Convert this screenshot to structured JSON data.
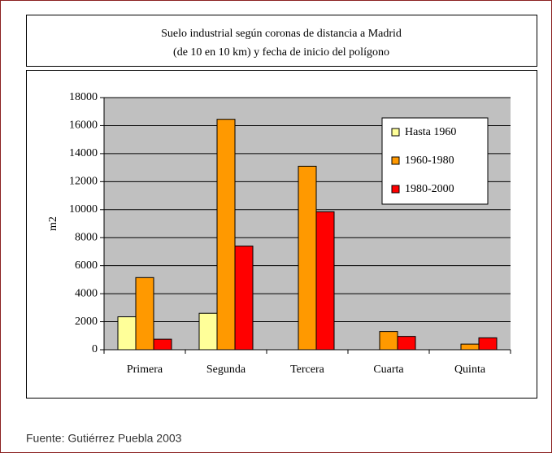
{
  "chart_data": {
    "type": "bar",
    "title": [
      "Suelo industrial según coronas de distancia a Madrid",
      "(de 10 en 10 km) y fecha de inicio del polígono"
    ],
    "y_label": "m2",
    "categories": [
      "Primera",
      "Segunda",
      "Tercera",
      "Cuarta",
      "Quinta"
    ],
    "series": [
      {
        "name": "Hasta 1960",
        "color": "#ffff99",
        "values": [
          2350,
          2600,
          0,
          0,
          0
        ]
      },
      {
        "name": "1960-1980",
        "color": "#ff9900",
        "values": [
          5150,
          16450,
          13100,
          1300,
          400
        ]
      },
      {
        "name": "1980-2000",
        "color": "#ff0000",
        "values": [
          750,
          7400,
          9850,
          950,
          850
        ]
      }
    ],
    "ylim": [
      0,
      18000
    ],
    "yticks": [
      0,
      2000,
      4000,
      6000,
      8000,
      10000,
      12000,
      14000,
      16000,
      18000
    ],
    "grid": true,
    "legend": "upper right"
  },
  "source": "Fuente: Gutiérrez Puebla 2003"
}
